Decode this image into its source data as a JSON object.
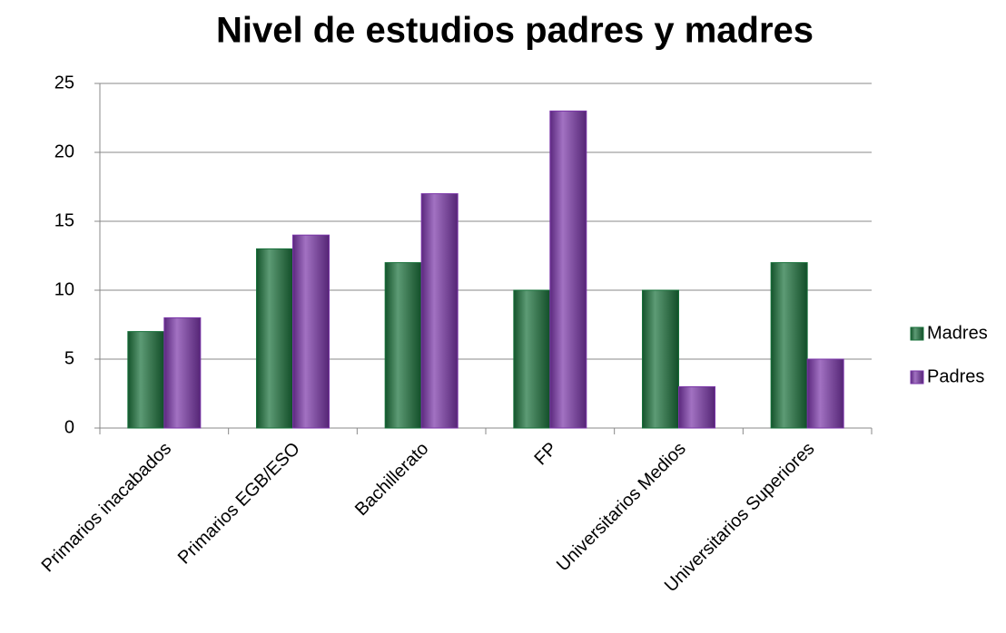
{
  "chart_data": {
    "type": "bar",
    "title": "Nivel de estudios padres y madres",
    "categories": [
      "Primarios inacabados",
      "Primarios EGB/ESO",
      "Bachillerato",
      "FP",
      "Universitarios Medios",
      "Universitarios Superiores"
    ],
    "series": [
      {
        "name": "Madres",
        "color": "#17703a",
        "values": [
          7,
          13,
          12,
          10,
          10,
          12
        ]
      },
      {
        "name": "Padres",
        "color": "#7a35a8",
        "values": [
          8,
          14,
          17,
          23,
          3,
          5
        ]
      }
    ],
    "ylim": [
      0,
      25
    ],
    "yticks": [
      0,
      5,
      10,
      15,
      20,
      25
    ],
    "grid": true,
    "legend": "right"
  }
}
